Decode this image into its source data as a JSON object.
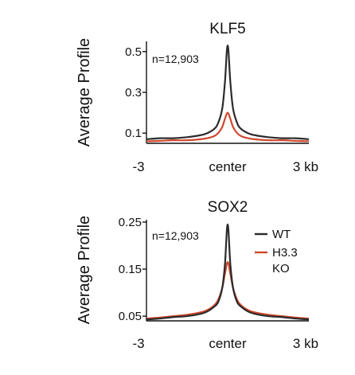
{
  "chart_data": [
    {
      "type": "line",
      "title": "KLF5",
      "ylabel": "Average Profile",
      "xlabel": "",
      "x_tick_labels": [
        "-3",
        "center",
        "3 kb"
      ],
      "xlim": [
        -3,
        3
      ],
      "ylim": [
        0.05,
        0.55
      ],
      "y_ticks": [
        0.1,
        0.3,
        0.5
      ],
      "y_tick_labels": [
        "0.1",
        "0.3",
        "0.5"
      ],
      "annotation": "n=12,903",
      "series": [
        {
          "color": "#2b2b2b",
          "x": [
            -3,
            -2.5,
            -2,
            -1.5,
            -1,
            -0.75,
            -0.5,
            -0.35,
            -0.2,
            -0.1,
            0,
            0.1,
            0.2,
            0.35,
            0.5,
            0.75,
            1,
            1.5,
            2,
            2.5,
            3
          ],
          "y": [
            0.07,
            0.075,
            0.075,
            0.08,
            0.09,
            0.1,
            0.12,
            0.15,
            0.22,
            0.35,
            0.53,
            0.35,
            0.22,
            0.15,
            0.12,
            0.1,
            0.09,
            0.08,
            0.075,
            0.075,
            0.07
          ]
        },
        {
          "color": "#d0472e",
          "x": [
            -3,
            -2.5,
            -2,
            -1.5,
            -1,
            -0.75,
            -0.5,
            -0.35,
            -0.2,
            -0.1,
            0,
            0.1,
            0.2,
            0.35,
            0.5,
            0.75,
            1,
            1.5,
            2,
            2.5,
            3
          ],
          "y": [
            0.06,
            0.062,
            0.065,
            0.065,
            0.07,
            0.075,
            0.085,
            0.1,
            0.13,
            0.17,
            0.2,
            0.17,
            0.13,
            0.1,
            0.085,
            0.075,
            0.07,
            0.065,
            0.065,
            0.062,
            0.06
          ]
        }
      ]
    },
    {
      "type": "line",
      "title": "SOX2",
      "ylabel": "Average Profile",
      "xlabel": "",
      "x_tick_labels": [
        "-3",
        "center",
        "3 kb"
      ],
      "xlim": [
        -3,
        3
      ],
      "ylim": [
        0.04,
        0.255
      ],
      "y_ticks": [
        0.05,
        0.15,
        0.25
      ],
      "y_tick_labels": [
        "0.05",
        "0.15",
        "0.25"
      ],
      "annotation": "n=12,903",
      "legend": {
        "position": "top-right",
        "entries": [
          {
            "label": "WT",
            "color": "#2b2b2b"
          },
          {
            "label": "H3.3",
            "label2": "KO",
            "color": "#d0472e"
          }
        ]
      },
      "series": [
        {
          "name": "WT",
          "color": "#2b2b2b",
          "x": [
            -3,
            -2.5,
            -2,
            -1.5,
            -1,
            -0.75,
            -0.5,
            -0.35,
            -0.2,
            -0.1,
            0,
            0.1,
            0.2,
            0.35,
            0.5,
            0.75,
            1,
            1.5,
            2,
            2.5,
            3
          ],
          "y": [
            0.043,
            0.045,
            0.048,
            0.05,
            0.055,
            0.06,
            0.07,
            0.08,
            0.11,
            0.16,
            0.245,
            0.16,
            0.11,
            0.08,
            0.07,
            0.06,
            0.055,
            0.05,
            0.048,
            0.045,
            0.043
          ]
        },
        {
          "name": "H3.3 KO",
          "color": "#d0472e",
          "x": [
            -3,
            -2.5,
            -2,
            -1.5,
            -1,
            -0.75,
            -0.5,
            -0.35,
            -0.2,
            -0.1,
            0,
            0.1,
            0.2,
            0.35,
            0.5,
            0.75,
            1,
            1.5,
            2,
            2.5,
            3
          ],
          "y": [
            0.045,
            0.047,
            0.05,
            0.053,
            0.058,
            0.063,
            0.073,
            0.085,
            0.11,
            0.14,
            0.165,
            0.14,
            0.11,
            0.085,
            0.073,
            0.063,
            0.058,
            0.053,
            0.05,
            0.047,
            0.045
          ]
        }
      ]
    }
  ]
}
